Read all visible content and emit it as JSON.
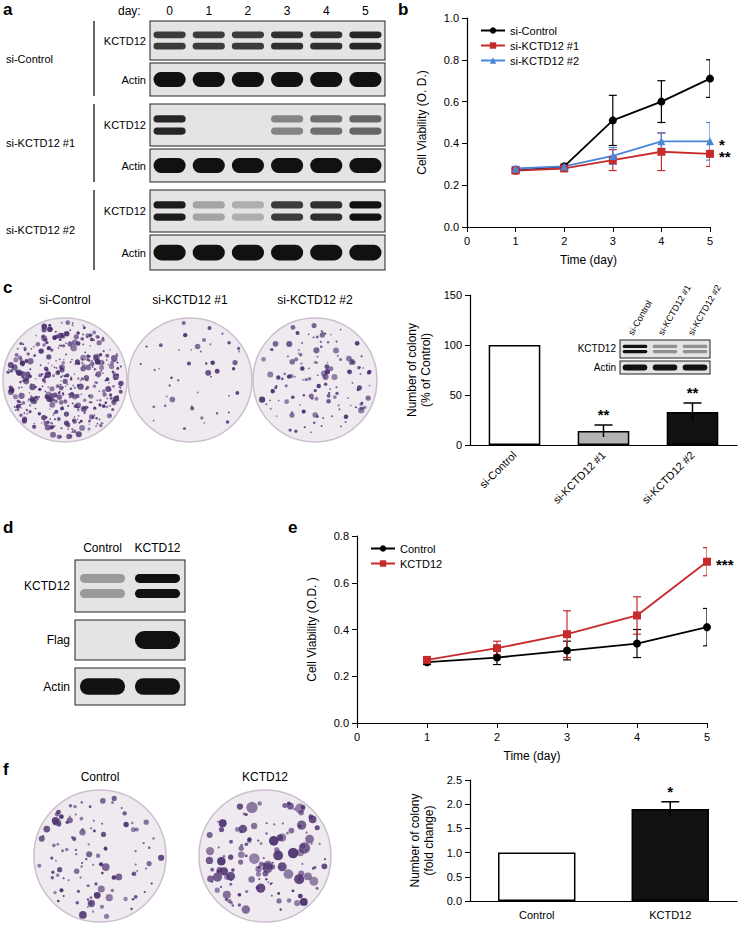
{
  "panel_labels": [
    "a",
    "b",
    "c",
    "d",
    "e",
    "f"
  ],
  "blots": [
    {
      "header": "day:",
      "columns": [
        "0",
        "1",
        "2",
        "3",
        "4",
        "5"
      ],
      "groups": [
        {
          "name": "si-Control",
          "rows": [
            "KCTD12",
            "Actin"
          ]
        },
        {
          "name": "si-KCTD12 #1",
          "rows": [
            "KCTD12",
            "Actin"
          ]
        },
        {
          "name": "si-KCTD12 #2",
          "rows": [
            "KCTD12",
            "Actin"
          ]
        }
      ]
    },
    {
      "columns": [
        "si-Control",
        "si-KCTD12 #1",
        "si-KCTD12 #2"
      ],
      "rows": [
        "KCTD12",
        "Actin"
      ]
    },
    {
      "columns": [
        "Control",
        "KCTD12"
      ],
      "rows": [
        "KCTD12",
        "Flag",
        "Actin"
      ]
    }
  ],
  "colony_images": [
    {
      "labels": [
        "si-Control",
        "si-KCTD12 #1",
        "si-KCTD12 #2"
      ]
    },
    {
      "labels": [
        "Control",
        "KCTD12"
      ]
    }
  ],
  "chart_data": [
    {
      "type": "line",
      "x_label": "Time (day)",
      "y_label": "Cell Viability (O. D.)",
      "xlim": [
        0,
        5
      ],
      "xticks": [
        0,
        1,
        2,
        3,
        4,
        5
      ],
      "ylim": [
        0,
        1
      ],
      "yticks": [
        {
          "value": 0,
          "label": "0.0"
        },
        {
          "value": 0.2,
          "label": "0.2"
        },
        {
          "value": 0.4,
          "label": "0.4"
        },
        {
          "value": 0.6,
          "label": "0.6"
        },
        {
          "value": 0.8,
          "label": "0.8"
        },
        {
          "value": 1,
          "label": "1.0"
        }
      ],
      "grid": false,
      "legend": "upper left",
      "series": [
        {
          "name": "si-Control",
          "color": "#000000",
          "marker": "circle",
          "x": [
            1,
            2,
            3,
            4,
            5
          ],
          "values": [
            0.27,
            0.29,
            0.51,
            0.6,
            0.71
          ],
          "errors": [
            0.01,
            0.01,
            0.12,
            0.1,
            0.09
          ]
        },
        {
          "name": "si-KCTD12 #1",
          "color": "#c62a2a",
          "marker": "square",
          "x": [
            1,
            2,
            3,
            4,
            5
          ],
          "values": [
            0.27,
            0.28,
            0.32,
            0.36,
            0.35
          ],
          "errors": [
            0.01,
            0.01,
            0.05,
            0.09,
            0.06
          ],
          "annotation": "**"
        },
        {
          "name": "si-KCTD12 #2",
          "color": "#4a86d8",
          "marker": "triangle",
          "x": [
            1,
            2,
            3,
            4,
            5
          ],
          "values": [
            0.28,
            0.29,
            0.34,
            0.41,
            0.41
          ],
          "errors": [
            0.01,
            0.01,
            0.04,
            0.04,
            0.09
          ],
          "annotation": "*"
        }
      ]
    },
    {
      "type": "bar",
      "y_label": "Number of colony\n(% of Control)",
      "categories": [
        "si-Control",
        "si-KCTD12 #1",
        "si-KCTD12 #2"
      ],
      "values": [
        100,
        14,
        33
      ],
      "errors": [
        null,
        6,
        9
      ],
      "annotations": [
        null,
        "**",
        "**"
      ],
      "colors": [
        "#ffffff",
        "#b3b3b3",
        "#111111"
      ],
      "ylim": [
        0,
        150
      ],
      "yticks": [
        0,
        50,
        100,
        150
      ],
      "grid": false
    },
    {
      "type": "line",
      "x_label": "Time (day)",
      "y_label": "Cell Viability (O.D. )",
      "xlim": [
        0,
        5
      ],
      "xticks": [
        0,
        1,
        2,
        3,
        4,
        5
      ],
      "ylim": [
        0,
        0.8
      ],
      "yticks": [
        {
          "value": 0,
          "label": "0.0"
        },
        {
          "value": 0.2,
          "label": "0.2"
        },
        {
          "value": 0.4,
          "label": "0.4"
        },
        {
          "value": 0.6,
          "label": "0.6"
        },
        {
          "value": 0.8,
          "label": "0.8"
        }
      ],
      "grid": false,
      "legend": "upper left",
      "series": [
        {
          "name": "Control",
          "color": "#000000",
          "marker": "circle",
          "x": [
            1,
            2,
            3,
            4,
            5
          ],
          "values": [
            0.26,
            0.28,
            0.31,
            0.34,
            0.41
          ],
          "errors": [
            0.01,
            0.03,
            0.04,
            0.06,
            0.08
          ]
        },
        {
          "name": "KCTD12",
          "color": "#c62a2a",
          "marker": "square",
          "x": [
            1,
            2,
            3,
            4,
            5
          ],
          "values": [
            0.27,
            0.32,
            0.38,
            0.46,
            0.69
          ],
          "errors": [
            0.01,
            0.03,
            0.1,
            0.08,
            0.06
          ],
          "annotation": "***"
        }
      ]
    },
    {
      "type": "bar",
      "y_label": "Number of colony\n(fold change)",
      "categories": [
        "Control",
        "KCTD12"
      ],
      "values": [
        1,
        1.9
      ],
      "errors": [
        null,
        0.15
      ],
      "annotations": [
        null,
        "*"
      ],
      "colors": [
        "#ffffff",
        "#111111"
      ],
      "ylim": [
        0,
        2.5
      ],
      "yticks": [
        {
          "value": 0,
          "label": "0.0"
        },
        {
          "value": 0.5,
          "label": "0.5"
        },
        {
          "value": 1,
          "label": "1.0"
        },
        {
          "value": 1.5,
          "label": "1.5"
        },
        {
          "value": 2,
          "label": "2.0"
        },
        {
          "value": 2.5,
          "label": "2.5"
        }
      ],
      "grid": false
    }
  ]
}
